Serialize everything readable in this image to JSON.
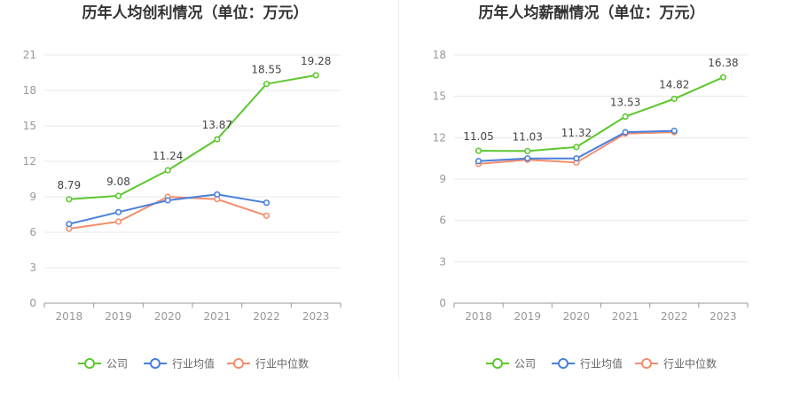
{
  "colors": {
    "company": "#5cc82e",
    "industry_avg": "#4a7fdc",
    "industry_median": "#f48e6e"
  },
  "legend": [
    "公司",
    "行业均值",
    "行业中位数"
  ],
  "chart_data": [
    {
      "type": "line",
      "title": "历年人均创利情况（单位：万元）",
      "categories": [
        "2018",
        "2019",
        "2020",
        "2021",
        "2022",
        "2023"
      ],
      "ylim": [
        0,
        21
      ],
      "yticks": [
        0,
        3,
        6,
        9,
        12,
        15,
        18,
        21
      ],
      "grid": true,
      "legend_position": "bottom-center",
      "series": [
        {
          "name": "公司",
          "values": [
            8.79,
            9.08,
            11.24,
            13.87,
            18.55,
            19.28
          ],
          "labels": [
            "8.79",
            "9.08",
            "11.24",
            "13.87",
            "18.55",
            "19.28"
          ]
        },
        {
          "name": "行业均值",
          "values": [
            6.7,
            7.7,
            8.7,
            9.2,
            8.5,
            null
          ]
        },
        {
          "name": "行业中位数",
          "values": [
            6.3,
            6.9,
            9.0,
            8.8,
            7.4,
            null
          ]
        }
      ]
    },
    {
      "type": "line",
      "title": "历年人均薪酬情况（单位：万元）",
      "categories": [
        "2018",
        "2019",
        "2020",
        "2021",
        "2022",
        "2023"
      ],
      "ylim": [
        0,
        18
      ],
      "yticks": [
        0,
        3,
        6,
        9,
        12,
        15,
        18
      ],
      "grid": true,
      "legend_position": "bottom-center",
      "series": [
        {
          "name": "公司",
          "values": [
            11.05,
            11.03,
            11.32,
            13.53,
            14.82,
            16.38
          ],
          "labels": [
            "11.05",
            "11.03",
            "11.32",
            "13.53",
            "14.82",
            "16.38"
          ]
        },
        {
          "name": "行业均值",
          "values": [
            10.3,
            10.5,
            10.5,
            12.4,
            12.5,
            null
          ]
        },
        {
          "name": "行业中位数",
          "values": [
            10.1,
            10.4,
            10.2,
            12.3,
            12.4,
            null
          ]
        }
      ]
    }
  ]
}
